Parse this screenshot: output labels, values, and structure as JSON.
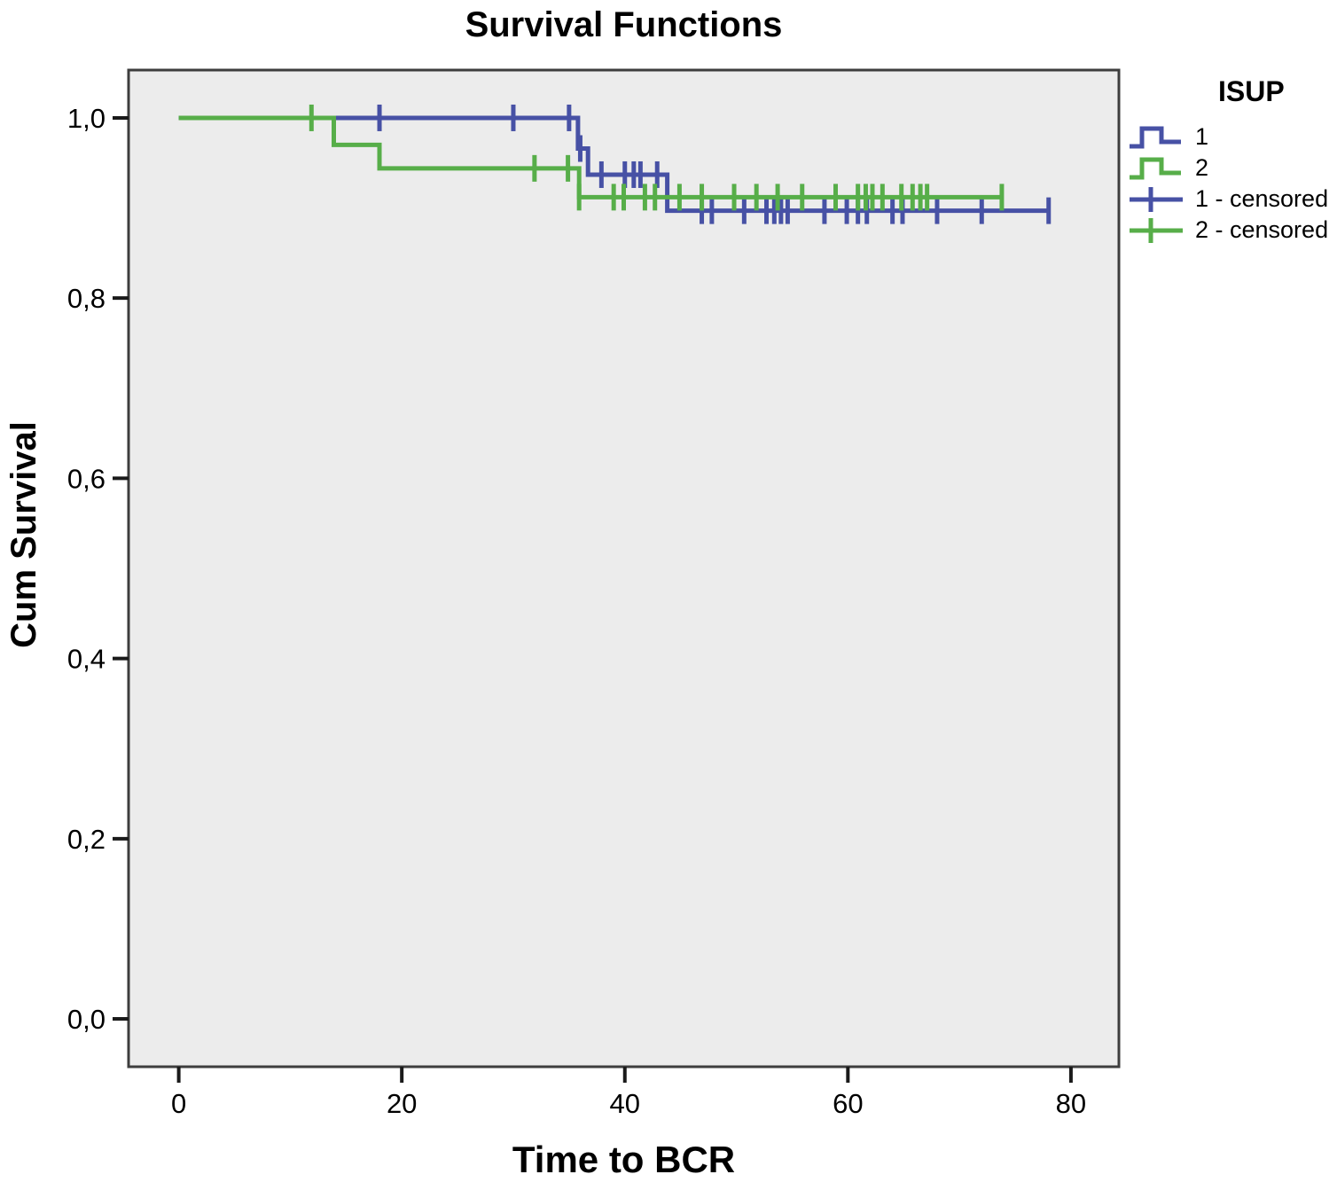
{
  "chart_data": {
    "type": "line",
    "subtype": "kaplan_meier_step",
    "title": "Survival Functions",
    "xlabel": "Time to BCR",
    "ylabel": "Cum Survival",
    "xlim": [
      -4.5,
      84.3
    ],
    "ylim": [
      -0.0531,
      1.0531
    ],
    "xticks": [
      0,
      20,
      40,
      60,
      80
    ],
    "xtick_labels": [
      "0",
      "20",
      "40",
      "60",
      "80"
    ],
    "yticks": [
      0.0,
      0.2,
      0.4,
      0.6,
      0.8,
      1.0
    ],
    "ytick_labels": [
      "0,0",
      "0,2",
      "0,4",
      "0,6",
      "0,8",
      "1,0"
    ],
    "grid": false,
    "plot_bg": "#ececec",
    "frame_color": "#3d3d3d",
    "tick_color": "#1a1a1a",
    "legend": {
      "title": "ISUP",
      "position": "right",
      "items": [
        {
          "label": "1",
          "glyph": "step",
          "color": "#4751a5"
        },
        {
          "label": "2",
          "glyph": "step",
          "color": "#57ae49"
        },
        {
          "label": "1 - censored",
          "glyph": "censor",
          "color": "#4751a5"
        },
        {
          "label": "2 - censored",
          "glyph": "censor",
          "color": "#57ae49"
        }
      ]
    },
    "series": [
      {
        "name": "1",
        "color": "#4751a5",
        "steps": [
          [
            0,
            1.0
          ],
          [
            35.8,
            0.966
          ],
          [
            36.7,
            0.937
          ],
          [
            43.8,
            0.897
          ],
          [
            78,
            0.897
          ]
        ],
        "censors": [
          [
            18,
            1.0
          ],
          [
            30,
            1.0
          ],
          [
            35,
            1.0
          ],
          [
            36,
            0.966
          ],
          [
            37.9,
            0.937
          ],
          [
            40,
            0.937
          ],
          [
            40.8,
            0.937
          ],
          [
            41.4,
            0.937
          ],
          [
            42.9,
            0.937
          ],
          [
            46.9,
            0.897
          ],
          [
            47.8,
            0.897
          ],
          [
            50.7,
            0.897
          ],
          [
            52.7,
            0.897
          ],
          [
            53.4,
            0.897
          ],
          [
            54,
            0.897
          ],
          [
            54.6,
            0.897
          ],
          [
            57.9,
            0.897
          ],
          [
            59.9,
            0.897
          ],
          [
            60.9,
            0.897
          ],
          [
            61.7,
            0.897
          ],
          [
            64,
            0.897
          ],
          [
            64.9,
            0.897
          ],
          [
            68,
            0.897
          ],
          [
            72,
            0.897
          ],
          [
            78,
            0.897
          ]
        ]
      },
      {
        "name": "2",
        "color": "#57ae49",
        "steps": [
          [
            0,
            1.0
          ],
          [
            13.9,
            0.97
          ],
          [
            18,
            0.944
          ],
          [
            35.9,
            0.912
          ],
          [
            73.8,
            0.912
          ]
        ],
        "censors": [
          [
            11.9,
            1.0
          ],
          [
            31.9,
            0.944
          ],
          [
            34.9,
            0.944
          ],
          [
            35.9,
            0.912
          ],
          [
            39,
            0.912
          ],
          [
            39.9,
            0.912
          ],
          [
            41.8,
            0.912
          ],
          [
            42.7,
            0.912
          ],
          [
            44.9,
            0.912
          ],
          [
            46.9,
            0.912
          ],
          [
            49.8,
            0.912
          ],
          [
            51.8,
            0.912
          ],
          [
            53.7,
            0.912
          ],
          [
            55.9,
            0.912
          ],
          [
            58.9,
            0.912
          ],
          [
            60.9,
            0.912
          ],
          [
            61.6,
            0.912
          ],
          [
            62.2,
            0.912
          ],
          [
            63.1,
            0.912
          ],
          [
            64.8,
            0.912
          ],
          [
            65.8,
            0.912
          ],
          [
            66.5,
            0.912
          ],
          [
            67.1,
            0.912
          ],
          [
            73.8,
            0.912
          ]
        ]
      }
    ]
  }
}
